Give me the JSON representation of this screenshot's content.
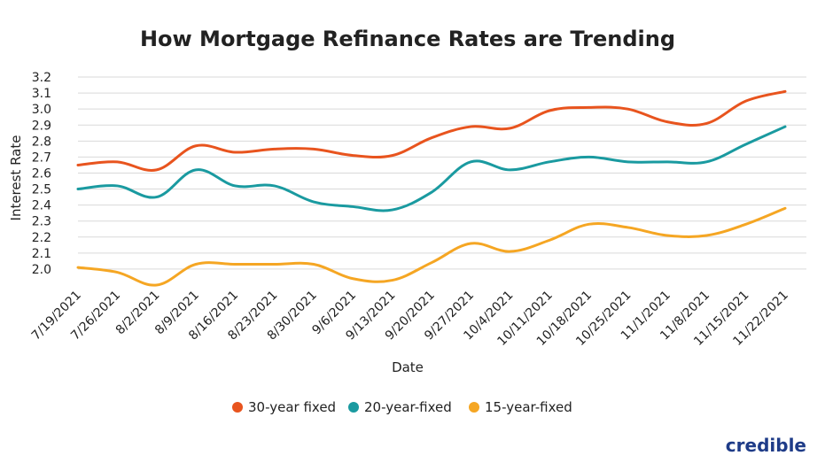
{
  "chart_data": {
    "type": "line",
    "title": "How Mortgage Refinance Rates are Trending",
    "xlabel": "Date",
    "ylabel": "Interest Rate",
    "ylim": [
      2.0,
      3.2
    ],
    "yticks": [
      "3.2",
      "3.1",
      "3.0",
      "2.9",
      "2.8",
      "2.7",
      "2.6",
      "2.5",
      "2.4",
      "2.3",
      "2.2",
      "2.1",
      "2.0"
    ],
    "grid": true,
    "legend_position": "bottom",
    "categories": [
      "7/19/2021",
      "7/26/2021",
      "8/2/2021",
      "8/9/2021",
      "8/16/2021",
      "8/23/2021",
      "8/30/2021",
      "9/6/2021",
      "9/13/2021",
      "9/20/2021",
      "9/27/2021",
      "10/4/2021",
      "10/11/2021",
      "10/18/2021",
      "10/25/2021",
      "11/1/2021",
      "11/8/2021",
      "11/15/2021",
      "11/22/2021"
    ],
    "series": [
      {
        "name": "30-year fixed",
        "color": "#e8541e",
        "values": [
          2.65,
          2.67,
          2.62,
          2.77,
          2.73,
          2.75,
          2.75,
          2.71,
          2.71,
          2.82,
          2.89,
          2.88,
          2.99,
          3.01,
          3.0,
          2.92,
          2.91,
          3.05,
          3.11
        ]
      },
      {
        "name": "20-year-fixed",
        "color": "#1a9aa0",
        "values": [
          2.5,
          2.52,
          2.45,
          2.62,
          2.52,
          2.52,
          2.42,
          2.39,
          2.37,
          2.48,
          2.67,
          2.62,
          2.67,
          2.7,
          2.67,
          2.67,
          2.67,
          2.78,
          2.89
        ]
      },
      {
        "name": "15-year-fixed",
        "color": "#f5a623",
        "values": [
          2.01,
          1.98,
          1.9,
          2.03,
          2.03,
          2.03,
          2.03,
          1.94,
          1.93,
          2.04,
          2.16,
          2.11,
          2.18,
          2.28,
          2.26,
          2.21,
          2.21,
          2.28,
          2.38
        ]
      }
    ]
  },
  "brand": {
    "logo_text": "credible"
  }
}
